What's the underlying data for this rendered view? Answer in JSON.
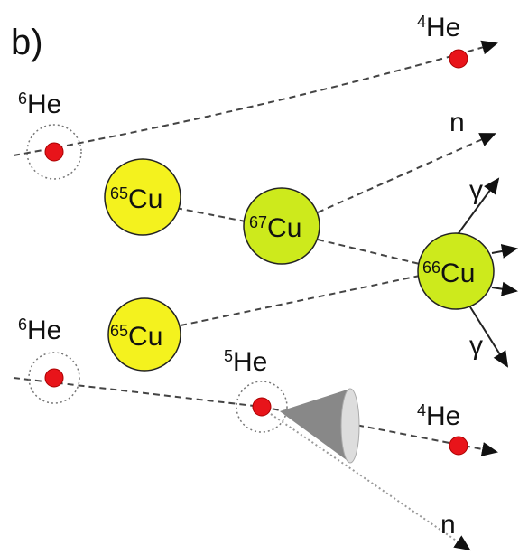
{
  "panel_label": "b)",
  "labels": [
    {
      "mass": "4",
      "symbol": "He"
    },
    {
      "mass": "6",
      "symbol": "He"
    },
    {
      "symbol": "n"
    },
    {
      "mass": "65",
      "symbol": "Cu"
    },
    {
      "mass": "67",
      "symbol": "Cu"
    },
    {
      "symbol": "γ"
    },
    {
      "mass": "66",
      "symbol": "Cu"
    },
    {
      "mass": "6",
      "symbol": "He"
    },
    {
      "mass": "65",
      "symbol": "Cu"
    },
    {
      "mass": "5",
      "symbol": "He"
    },
    {
      "symbol": "γ"
    },
    {
      "mass": "4",
      "symbol": "He"
    },
    {
      "symbol": "n"
    }
  ]
}
